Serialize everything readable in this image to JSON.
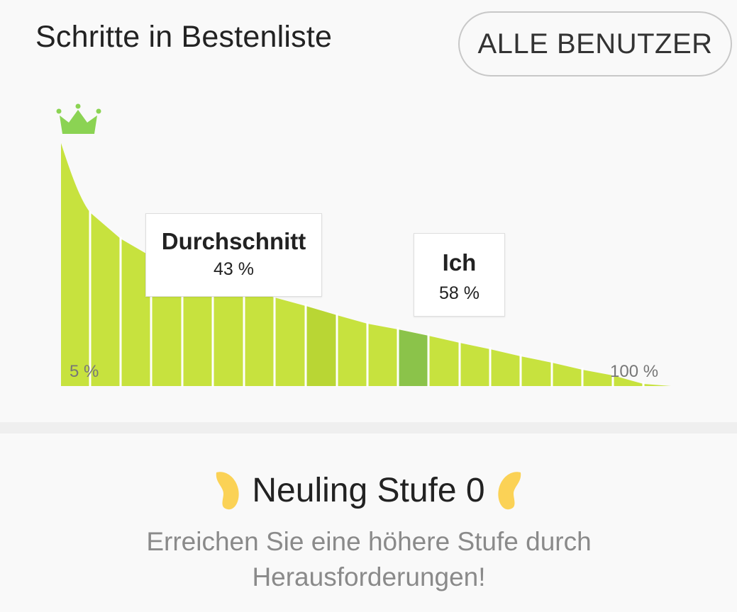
{
  "header": {
    "title": "Schritte in Bestenliste",
    "all_users_button": "ALLE BENUTZER"
  },
  "leaderboard": {
    "average": {
      "label": "Durchschnitt",
      "value": "43 %"
    },
    "me": {
      "label": "Ich",
      "value": "58 %"
    },
    "axis_start_label": "5 %",
    "axis_end_label": "100 %"
  },
  "level": {
    "title": "Neuling Stufe 0",
    "hint_line1": "Erreichen Sie eine höhere Stufe durch",
    "hint_line2": "Herausforderungen!"
  },
  "colors": {
    "bar": "#c7e23e",
    "average_bar": "#b9d634",
    "me_bar": "#8bc34a",
    "crown": "#8bd353",
    "wing": "#fbd256"
  }
}
